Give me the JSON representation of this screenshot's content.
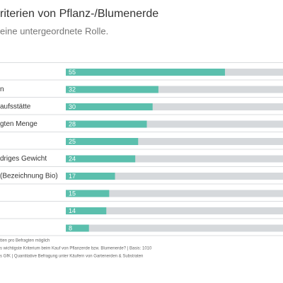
{
  "chart_data": {
    "type": "bar",
    "title": "riterien von Pflanz-/Blumenerde",
    "subtitle": "eine untergeordnete Rolle.",
    "categories": [
      null,
      "n",
      "aufsstätte",
      "gten Menge",
      null,
      "driges Gewicht",
      "(Bezeichnung Bio)",
      null,
      null,
      null
    ],
    "values": [
      55,
      32,
      30,
      28,
      25,
      24,
      17,
      15,
      14,
      8
    ],
    "color": "#5bbfad",
    "track_color": "#d6d9dc",
    "xlim": [
      0,
      100
    ],
    "notes": [
      "tten pro Befragten möglich",
      "s wichtigste Kriterium beim Kauf von Pflanzerde bzw. Blumenerde? | Basis: 1010",
      "s GfK | Quantitative Befragung unter Käufern von Gartenerden & Substraten"
    ]
  }
}
